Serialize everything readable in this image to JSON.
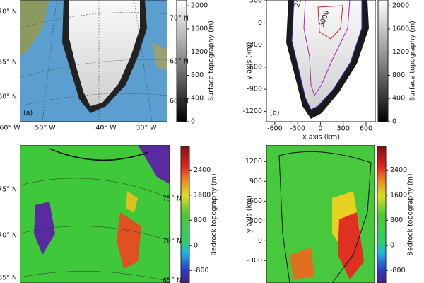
{
  "panels": [
    {
      "label": "(a)",
      "left_labels": [
        "70° N",
        "65° N",
        "60° N"
      ],
      "right_labels": [
        "70° N",
        "65° N",
        "60° N"
      ],
      "bottom_labels": [
        "60° W",
        "50° W",
        "40° W",
        "30° W"
      ],
      "colorbar": {
        "title": "Surface topography (m)",
        "lim": [
          0,
          2100
        ],
        "ticks": [
          0,
          400,
          800,
          1200,
          1600,
          2000
        ],
        "colormap": "gray"
      }
    },
    {
      "label": "(b)",
      "contour_labels": [
        "2500",
        "3000"
      ],
      "xlabel": "x axis (km)",
      "ylabel": "y axis (km)",
      "xlim": [
        -710,
        730
      ],
      "ylim": [
        -1340,
        310
      ],
      "xticks": [
        -600,
        -300,
        0,
        300,
        600
      ],
      "yticks": [
        -1200,
        -900,
        -600,
        -300,
        0,
        300
      ],
      "colorbar": {
        "title": "Surface topography (m)",
        "lim": [
          0,
          2100
        ],
        "ticks": [
          0,
          400,
          800,
          1200,
          1600,
          2000
        ],
        "colormap": "gray"
      }
    },
    {
      "left_labels": [
        "75° N",
        "70° N",
        "65° N"
      ],
      "right_labels": [
        "75° N",
        "70° N",
        "65° N"
      ],
      "colorbar": {
        "title": "Bedrock topography (m)",
        "lim": [
          -1200,
          3150
        ],
        "ticks": [
          -800,
          0,
          800,
          1600,
          2400
        ],
        "colormap": "jet"
      }
    },
    {
      "ylabel": "y axis (km)",
      "ylim": [
        -640,
        1450
      ],
      "yticks": [
        -300,
        0,
        300,
        600,
        900,
        1200
      ],
      "colorbar": {
        "title": "Bedrock topography (m)",
        "lim": [
          -1200,
          3150
        ],
        "ticks": [
          -800,
          0,
          800,
          1600,
          2400
        ],
        "colormap": "jet"
      }
    }
  ]
}
